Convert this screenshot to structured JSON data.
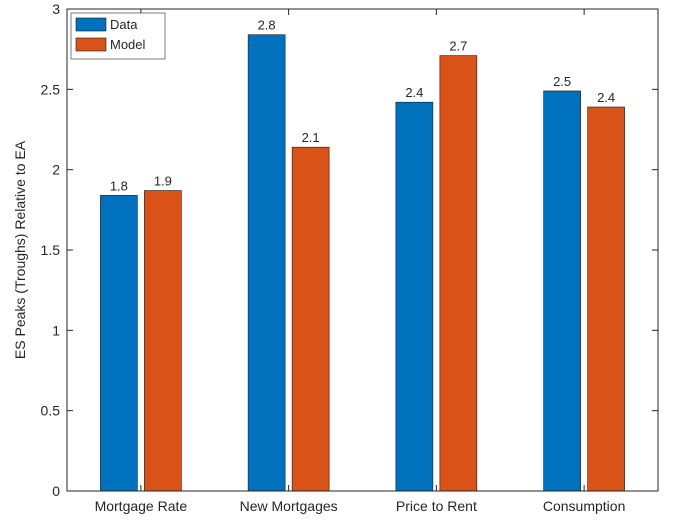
{
  "chart_data": {
    "type": "bar",
    "ylabel": "ES Peaks (Troughs) Relative to EA",
    "categories": [
      "Mortgage Rate",
      "New Mortgages",
      "Price to Rent",
      "Consumption"
    ],
    "series": [
      {
        "name": "Data",
        "color": "#0072bd",
        "values": [
          1.84,
          2.84,
          2.42,
          2.49
        ],
        "value_labels": [
          "1.8",
          "2.8",
          "2.4",
          "2.5"
        ]
      },
      {
        "name": "Model",
        "color": "#d95319",
        "values": [
          1.87,
          2.14,
          2.71,
          2.39
        ],
        "value_labels": [
          "1.9",
          "2.1",
          "2.7",
          "2.4"
        ]
      }
    ],
    "ylim": [
      0,
      3
    ],
    "yticks": [
      0,
      0.5,
      1,
      1.5,
      2,
      2.5,
      3
    ],
    "legend": "upper-left"
  }
}
